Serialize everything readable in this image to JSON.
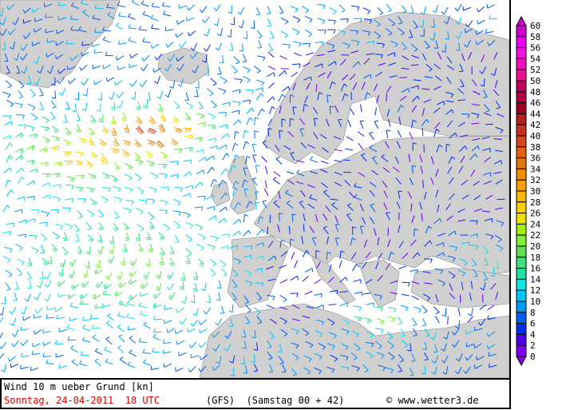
{
  "map": {
    "title": "Wind 10 m ueber Grund [kn]",
    "valid_time": "Sonntag, 24-04-2011  18 UTC",
    "model": "(GFS)",
    "run": "(Samstag 00 + 42)",
    "copyright": "© www.wetter3.de",
    "land_color": "#d0d0d0",
    "sea_color": "#ffffff"
  },
  "legend": {
    "labels": [
      "60",
      "58",
      "56",
      "54",
      "52",
      "50",
      "48",
      "46",
      "44",
      "42",
      "40",
      "38",
      "36",
      "34",
      "32",
      "30",
      "28",
      "26",
      "24",
      "22",
      "20",
      "18",
      "16",
      "14",
      "12",
      "10",
      "8",
      "6",
      "4",
      "2",
      "0"
    ],
    "colors": [
      "#d000d0",
      "#f000f0",
      "#f010e0",
      "#f010c0",
      "#f01090",
      "#c00060",
      "#b00040",
      "#a00020",
      "#b02020",
      "#c83020",
      "#d84820",
      "#e06010",
      "#e07810",
      "#f09000",
      "#f8a000",
      "#f8b800",
      "#f8d000",
      "#f0e000",
      "#a0f000",
      "#80f030",
      "#60e050",
      "#40e080",
      "#20e0a0",
      "#10e8e8",
      "#00c8f8",
      "#0098f8",
      "#0060f0",
      "#0030f0",
      "#5000f0",
      "#8000f0"
    ]
  }
}
